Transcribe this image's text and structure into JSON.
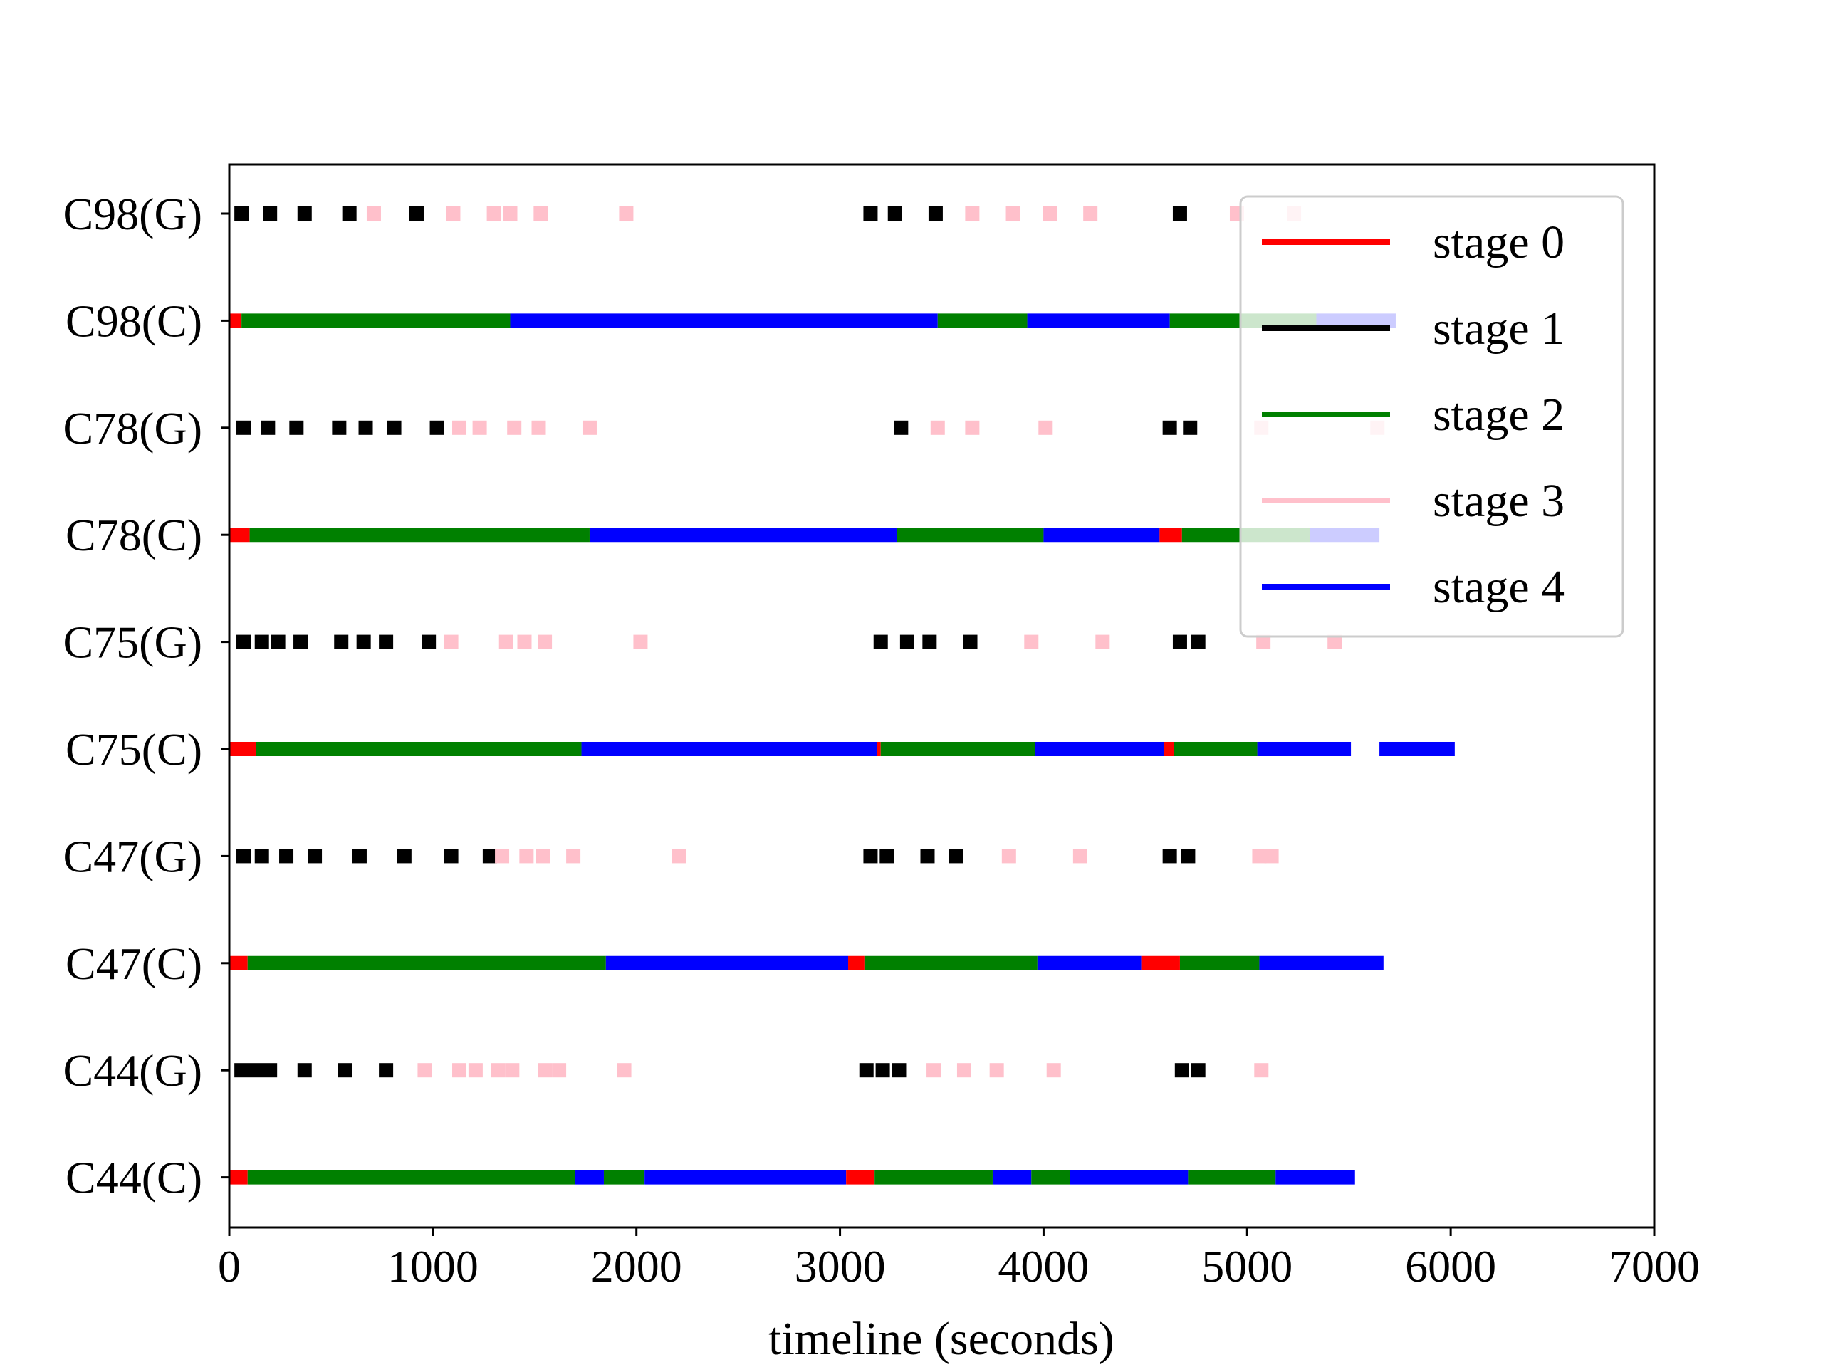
{
  "chart_data": {
    "type": "timeline",
    "title": "",
    "xlabel": "timeline (seconds)",
    "ylabel": "",
    "xlim": [
      0,
      7000
    ],
    "xticks": [
      "0",
      "1000",
      "2000",
      "3000",
      "4000",
      "5000",
      "6000",
      "7000"
    ],
    "grid": false,
    "legend_placement": "top-right",
    "stages": [
      {
        "name": "stage 0",
        "color": "#ff0000"
      },
      {
        "name": "stage 1",
        "color": "#000000"
      },
      {
        "name": "stage 2",
        "color": "#008000"
      },
      {
        "name": "stage 3",
        "color": "#ffc0cb"
      },
      {
        "name": "stage 4",
        "color": "#0000ff"
      }
    ],
    "rows": [
      {
        "label": "C98(G)",
        "kind": "points",
        "events": [
          {
            "s": 1,
            "t": 60
          },
          {
            "s": 1,
            "t": 200
          },
          {
            "s": 1,
            "t": 370
          },
          {
            "s": 1,
            "t": 590
          },
          {
            "s": 3,
            "t": 710
          },
          {
            "s": 1,
            "t": 920
          },
          {
            "s": 3,
            "t": 1100
          },
          {
            "s": 3,
            "t": 1300
          },
          {
            "s": 3,
            "t": 1380
          },
          {
            "s": 3,
            "t": 1530
          },
          {
            "s": 3,
            "t": 1950
          },
          {
            "s": 1,
            "t": 3150
          },
          {
            "s": 1,
            "t": 3270
          },
          {
            "s": 1,
            "t": 3470
          },
          {
            "s": 3,
            "t": 3650
          },
          {
            "s": 3,
            "t": 3850
          },
          {
            "s": 3,
            "t": 4030
          },
          {
            "s": 3,
            "t": 4230
          },
          {
            "s": 1,
            "t": 4670
          },
          {
            "s": 3,
            "t": 4950
          },
          {
            "s": 3,
            "t": 5230
          }
        ]
      },
      {
        "label": "C98(C)",
        "kind": "segments",
        "segments": [
          {
            "s": 0,
            "from": 0,
            "to": 60
          },
          {
            "s": 2,
            "from": 60,
            "to": 1380
          },
          {
            "s": 4,
            "from": 1380,
            "to": 3480
          },
          {
            "s": 2,
            "from": 3480,
            "to": 3920
          },
          {
            "s": 4,
            "from": 3920,
            "to": 4620
          },
          {
            "s": 2,
            "from": 4620,
            "to": 5340
          },
          {
            "s": 4,
            "from": 5340,
            "to": 5730
          }
        ]
      },
      {
        "label": "C78(G)",
        "kind": "points",
        "events": [
          {
            "s": 1,
            "t": 70
          },
          {
            "s": 1,
            "t": 190
          },
          {
            "s": 1,
            "t": 330
          },
          {
            "s": 1,
            "t": 540
          },
          {
            "s": 1,
            "t": 670
          },
          {
            "s": 1,
            "t": 810
          },
          {
            "s": 1,
            "t": 1020
          },
          {
            "s": 3,
            "t": 1130
          },
          {
            "s": 3,
            "t": 1230
          },
          {
            "s": 3,
            "t": 1400
          },
          {
            "s": 3,
            "t": 1520
          },
          {
            "s": 3,
            "t": 1770
          },
          {
            "s": 1,
            "t": 3300
          },
          {
            "s": 3,
            "t": 3480
          },
          {
            "s": 3,
            "t": 3650
          },
          {
            "s": 3,
            "t": 4010
          },
          {
            "s": 1,
            "t": 4620
          },
          {
            "s": 1,
            "t": 4720
          },
          {
            "s": 3,
            "t": 5070
          },
          {
            "s": 3,
            "t": 5640
          }
        ]
      },
      {
        "label": "C78(C)",
        "kind": "segments",
        "segments": [
          {
            "s": 0,
            "from": 0,
            "to": 100
          },
          {
            "s": 2,
            "from": 100,
            "to": 1770
          },
          {
            "s": 4,
            "from": 1770,
            "to": 3280
          },
          {
            "s": 2,
            "from": 3280,
            "to": 4000
          },
          {
            "s": 4,
            "from": 4000,
            "to": 4570
          },
          {
            "s": 0,
            "from": 4570,
            "to": 4680
          },
          {
            "s": 2,
            "from": 4680,
            "to": 5310
          },
          {
            "s": 4,
            "from": 5310,
            "to": 5650
          }
        ]
      },
      {
        "label": "C75(G)",
        "kind": "points",
        "events": [
          {
            "s": 1,
            "t": 70
          },
          {
            "s": 1,
            "t": 160
          },
          {
            "s": 1,
            "t": 240
          },
          {
            "s": 1,
            "t": 350
          },
          {
            "s": 1,
            "t": 550
          },
          {
            "s": 1,
            "t": 660
          },
          {
            "s": 1,
            "t": 770
          },
          {
            "s": 1,
            "t": 980
          },
          {
            "s": 3,
            "t": 1090
          },
          {
            "s": 3,
            "t": 1360
          },
          {
            "s": 3,
            "t": 1450
          },
          {
            "s": 3,
            "t": 1550
          },
          {
            "s": 3,
            "t": 2020
          },
          {
            "s": 1,
            "t": 3200
          },
          {
            "s": 1,
            "t": 3330
          },
          {
            "s": 1,
            "t": 3440
          },
          {
            "s": 1,
            "t": 3640
          },
          {
            "s": 3,
            "t": 3940
          },
          {
            "s": 3,
            "t": 4290
          },
          {
            "s": 1,
            "t": 4670
          },
          {
            "s": 1,
            "t": 4760
          },
          {
            "s": 3,
            "t": 5080
          },
          {
            "s": 3,
            "t": 5430
          }
        ]
      },
      {
        "label": "C75(C)",
        "kind": "segments",
        "segments": [
          {
            "s": 0,
            "from": 0,
            "to": 130
          },
          {
            "s": 2,
            "from": 130,
            "to": 1730
          },
          {
            "s": 4,
            "from": 1730,
            "to": 3180
          },
          {
            "s": 0,
            "from": 3180,
            "to": 3200
          },
          {
            "s": 2,
            "from": 3200,
            "to": 3960
          },
          {
            "s": 4,
            "from": 3960,
            "to": 4590
          },
          {
            "s": 0,
            "from": 4590,
            "to": 4640
          },
          {
            "s": 2,
            "from": 4640,
            "to": 5050
          },
          {
            "s": 4,
            "from": 5050,
            "to": 5510
          },
          {
            "s": 4,
            "from": 5650,
            "to": 6020
          }
        ]
      },
      {
        "label": "C47(G)",
        "kind": "points",
        "events": [
          {
            "s": 1,
            "t": 70
          },
          {
            "s": 1,
            "t": 160
          },
          {
            "s": 1,
            "t": 280
          },
          {
            "s": 1,
            "t": 420
          },
          {
            "s": 1,
            "t": 640
          },
          {
            "s": 1,
            "t": 860
          },
          {
            "s": 1,
            "t": 1090
          },
          {
            "s": 1,
            "t": 1280
          },
          {
            "s": 3,
            "t": 1340
          },
          {
            "s": 3,
            "t": 1460
          },
          {
            "s": 3,
            "t": 1540
          },
          {
            "s": 3,
            "t": 1690
          },
          {
            "s": 3,
            "t": 2210
          },
          {
            "s": 1,
            "t": 3150
          },
          {
            "s": 1,
            "t": 3230
          },
          {
            "s": 1,
            "t": 3430
          },
          {
            "s": 1,
            "t": 3570
          },
          {
            "s": 3,
            "t": 3830
          },
          {
            "s": 3,
            "t": 4180
          },
          {
            "s": 1,
            "t": 4620
          },
          {
            "s": 1,
            "t": 4710
          },
          {
            "s": 3,
            "t": 5060
          },
          {
            "s": 3,
            "t": 5120
          }
        ]
      },
      {
        "label": "C47(C)",
        "kind": "segments",
        "segments": [
          {
            "s": 0,
            "from": 0,
            "to": 90
          },
          {
            "s": 2,
            "from": 90,
            "to": 1850
          },
          {
            "s": 4,
            "from": 1850,
            "to": 3040
          },
          {
            "s": 0,
            "from": 3040,
            "to": 3120
          },
          {
            "s": 2,
            "from": 3120,
            "to": 3970
          },
          {
            "s": 4,
            "from": 3970,
            "to": 4480
          },
          {
            "s": 0,
            "from": 4480,
            "to": 4670
          },
          {
            "s": 2,
            "from": 4670,
            "to": 5060
          },
          {
            "s": 4,
            "from": 5060,
            "to": 5670
          }
        ]
      },
      {
        "label": "C44(G)",
        "kind": "points",
        "events": [
          {
            "s": 1,
            "t": 60
          },
          {
            "s": 1,
            "t": 130
          },
          {
            "s": 1,
            "t": 200
          },
          {
            "s": 1,
            "t": 370
          },
          {
            "s": 1,
            "t": 570
          },
          {
            "s": 1,
            "t": 770
          },
          {
            "s": 3,
            "t": 960
          },
          {
            "s": 3,
            "t": 1130
          },
          {
            "s": 3,
            "t": 1210
          },
          {
            "s": 3,
            "t": 1320
          },
          {
            "s": 3,
            "t": 1390
          },
          {
            "s": 3,
            "t": 1550
          },
          {
            "s": 3,
            "t": 1620
          },
          {
            "s": 3,
            "t": 1940
          },
          {
            "s": 1,
            "t": 3130
          },
          {
            "s": 1,
            "t": 3210
          },
          {
            "s": 1,
            "t": 3290
          },
          {
            "s": 3,
            "t": 3460
          },
          {
            "s": 3,
            "t": 3610
          },
          {
            "s": 3,
            "t": 3770
          },
          {
            "s": 3,
            "t": 4050
          },
          {
            "s": 1,
            "t": 4680
          },
          {
            "s": 1,
            "t": 4760
          },
          {
            "s": 3,
            "t": 5070
          }
        ]
      },
      {
        "label": "C44(C)",
        "kind": "segments",
        "segments": [
          {
            "s": 0,
            "from": 0,
            "to": 90
          },
          {
            "s": 2,
            "from": 90,
            "to": 1700
          },
          {
            "s": 4,
            "from": 1700,
            "to": 1840
          },
          {
            "s": 2,
            "from": 1840,
            "to": 2040
          },
          {
            "s": 4,
            "from": 2040,
            "to": 3030
          },
          {
            "s": 0,
            "from": 3030,
            "to": 3170
          },
          {
            "s": 2,
            "from": 3170,
            "to": 3750
          },
          {
            "s": 4,
            "from": 3750,
            "to": 3940
          },
          {
            "s": 2,
            "from": 3940,
            "to": 4130
          },
          {
            "s": 4,
            "from": 4130,
            "to": 4710
          },
          {
            "s": 2,
            "from": 4710,
            "to": 5140
          },
          {
            "s": 4,
            "from": 5140,
            "to": 5530
          }
        ]
      }
    ]
  }
}
